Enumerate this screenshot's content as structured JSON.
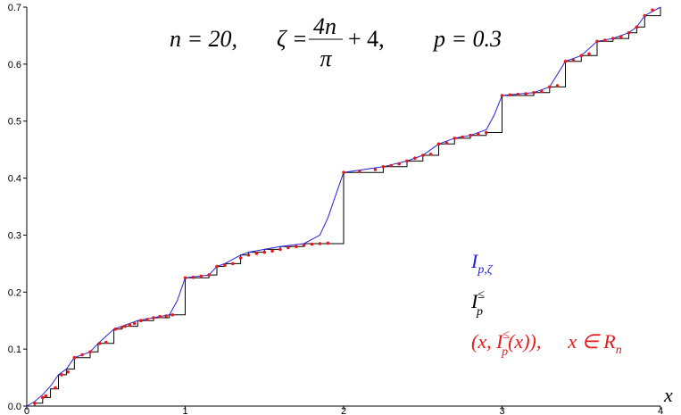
{
  "chart_data": {
    "type": "line",
    "title": {
      "n": "n = 20,",
      "zeta_lhs": "ζ =",
      "zeta_num": "4n",
      "zeta_den": "π",
      "zeta_rest": "+ 4,",
      "p": "p = 0.3"
    },
    "xlabel": "x",
    "ylabel": "",
    "xlim": [
      0,
      4
    ],
    "ylim": [
      0,
      0.7
    ],
    "x_ticks": [
      "0",
      "1",
      "2",
      "3",
      "4"
    ],
    "y_ticks": [
      "0.0",
      "0.1",
      "0.2",
      "0.3",
      "0.4",
      "0.5",
      "0.6",
      "0.7"
    ],
    "legend_placement": "right",
    "legend": [
      {
        "base": "I",
        "sub": "p,ζ",
        "sup": "",
        "tail": "",
        "color": "#2222dd"
      },
      {
        "base": "I",
        "sub": "p",
        "sup": "≤",
        "tail": "",
        "color": "#000000"
      },
      {
        "base": "(x, I",
        "sub": "p",
        "sup": "≤",
        "tail": "(x)),",
        "extra": "x ∈ R",
        "extra_sub": "n",
        "color": "#e41a1c"
      }
    ],
    "colors": {
      "smooth": "#2222dd",
      "step": "#000000",
      "points": "#e41a1c"
    },
    "series": [
      {
        "kind": "step",
        "x": [
          0,
          0.05,
          0.1,
          0.15,
          0.2,
          0.25,
          0.3,
          0.4,
          0.45,
          0.55,
          0.6,
          0.7,
          0.8,
          0.9,
          1.0,
          1.15,
          1.2,
          1.25,
          1.35,
          1.4,
          1.5,
          1.6,
          1.75,
          2.0,
          2.25,
          2.4,
          2.5,
          2.6,
          2.7,
          2.8,
          2.9,
          3.0,
          3.2,
          3.3,
          3.4,
          3.5,
          3.6,
          3.7,
          3.8,
          3.85,
          3.9,
          4.0
        ],
        "y": [
          0,
          0.005,
          0.015,
          0.03,
          0.055,
          0.065,
          0.085,
          0.095,
          0.11,
          0.135,
          0.14,
          0.15,
          0.155,
          0.16,
          0.225,
          0.23,
          0.245,
          0.25,
          0.265,
          0.27,
          0.275,
          0.28,
          0.285,
          0.41,
          0.42,
          0.43,
          0.44,
          0.46,
          0.47,
          0.475,
          0.48,
          0.545,
          0.55,
          0.56,
          0.605,
          0.615,
          0.64,
          0.645,
          0.655,
          0.665,
          0.685,
          0.7
        ]
      },
      {
        "kind": "smooth",
        "x": [
          0,
          0.05,
          0.1,
          0.15,
          0.2,
          0.25,
          0.3,
          0.4,
          0.45,
          0.55,
          0.6,
          0.7,
          0.8,
          0.9,
          0.95,
          1.0,
          1.15,
          1.2,
          1.25,
          1.35,
          1.4,
          1.5,
          1.6,
          1.75,
          1.85,
          1.9,
          1.95,
          2.0,
          2.25,
          2.4,
          2.5,
          2.6,
          2.7,
          2.8,
          2.9,
          2.95,
          3.0,
          3.2,
          3.3,
          3.4,
          3.5,
          3.6,
          3.7,
          3.8,
          3.85,
          3.9,
          4.0
        ],
        "y": [
          0,
          0.008,
          0.02,
          0.035,
          0.055,
          0.065,
          0.085,
          0.095,
          0.11,
          0.135,
          0.14,
          0.15,
          0.155,
          0.16,
          0.185,
          0.225,
          0.23,
          0.245,
          0.25,
          0.265,
          0.27,
          0.275,
          0.28,
          0.285,
          0.3,
          0.33,
          0.37,
          0.41,
          0.42,
          0.43,
          0.44,
          0.46,
          0.47,
          0.475,
          0.485,
          0.51,
          0.545,
          0.55,
          0.56,
          0.605,
          0.615,
          0.64,
          0.645,
          0.655,
          0.665,
          0.685,
          0.7
        ]
      },
      {
        "kind": "points",
        "x": [
          0.05,
          0.1,
          0.12,
          0.18,
          0.22,
          0.26,
          0.3,
          0.35,
          0.4,
          0.46,
          0.5,
          0.56,
          0.6,
          0.62,
          0.65,
          0.68,
          0.72,
          0.76,
          0.8,
          0.84,
          0.88,
          0.92,
          1.0,
          1.05,
          1.1,
          1.15,
          1.2,
          1.25,
          1.3,
          1.35,
          1.4,
          1.45,
          1.5,
          1.55,
          1.6,
          1.65,
          1.7,
          1.75,
          1.8,
          1.85,
          1.9,
          2.0,
          2.1,
          2.2,
          2.25,
          2.3,
          2.35,
          2.4,
          2.45,
          2.5,
          2.55,
          2.6,
          2.65,
          2.7,
          2.75,
          2.8,
          2.85,
          2.9,
          3.0,
          3.05,
          3.1,
          3.15,
          3.2,
          3.25,
          3.3,
          3.35,
          3.4,
          3.45,
          3.5,
          3.55,
          3.6,
          3.65,
          3.7,
          3.75,
          3.8,
          3.85,
          3.9,
          3.95
        ],
        "y": [
          0.005,
          0.015,
          0.018,
          0.032,
          0.055,
          0.06,
          0.085,
          0.09,
          0.095,
          0.11,
          0.112,
          0.135,
          0.138,
          0.14,
          0.142,
          0.145,
          0.15,
          0.152,
          0.155,
          0.157,
          0.158,
          0.16,
          0.225,
          0.226,
          0.228,
          0.23,
          0.245,
          0.247,
          0.25,
          0.26,
          0.265,
          0.268,
          0.27,
          0.272,
          0.275,
          0.278,
          0.28,
          0.282,
          0.284,
          0.285,
          0.286,
          0.41,
          0.412,
          0.415,
          0.42,
          0.422,
          0.425,
          0.43,
          0.435,
          0.44,
          0.442,
          0.46,
          0.462,
          0.47,
          0.472,
          0.475,
          0.477,
          0.48,
          0.545,
          0.546,
          0.547,
          0.548,
          0.55,
          0.552,
          0.56,
          0.562,
          0.605,
          0.607,
          0.615,
          0.618,
          0.64,
          0.642,
          0.645,
          0.648,
          0.655,
          0.665,
          0.685,
          0.695
        ]
      }
    ]
  }
}
